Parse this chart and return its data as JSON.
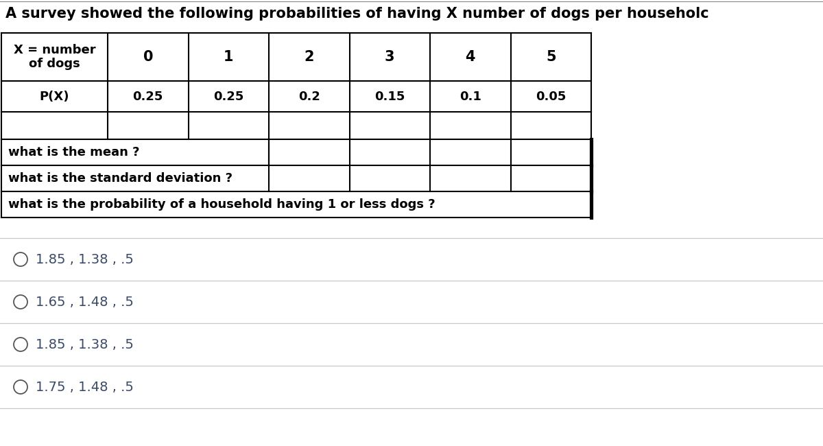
{
  "title": "A survey showed the following probabilities of having X number of dogs per householc",
  "table": {
    "row1_label": "X = number\nof dogs",
    "row2_label": "P(X)",
    "columns": [
      "0",
      "1",
      "2",
      "3",
      "4",
      "5"
    ],
    "probabilities": [
      "0.25",
      "0.25",
      "0.2",
      "0.15",
      "0.1",
      "0.05"
    ]
  },
  "questions": [
    "what is the mean ?",
    "what is the standard deviation ?",
    "what is the probability of a household having 1 or less dogs ?"
  ],
  "options": [
    "1.85 , 1.38 , .5",
    "1.65 , 1.48 , .5",
    "1.85 , 1.38 , .5",
    "1.75 , 1.48 , .5"
  ],
  "bg_color": "#ffffff",
  "table_border_color": "#000000",
  "text_color": "#000000",
  "option_text_color": "#3a4a6b",
  "option_separator_color": "#c8c8c8",
  "title_color": "#000000"
}
